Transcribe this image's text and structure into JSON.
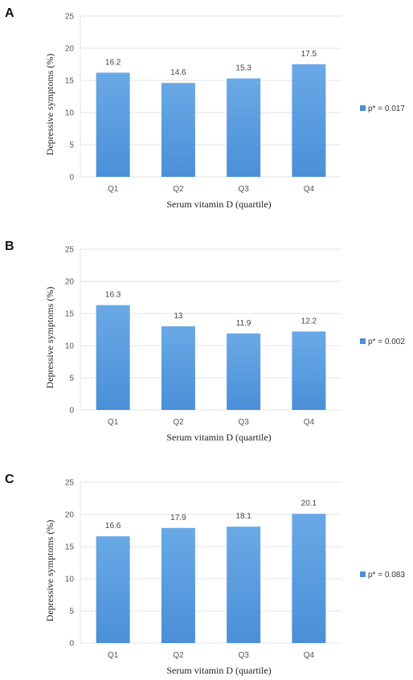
{
  "chart_data": [
    {
      "panel": "A",
      "type": "bar",
      "categories": [
        "Q1",
        "Q2",
        "Q3",
        "Q4"
      ],
      "values": [
        16.2,
        14.6,
        15.3,
        17.5
      ],
      "value_labels": [
        "16.2",
        "14.6",
        "15.3",
        "17.5"
      ],
      "yticks": [
        "0",
        "5",
        "10",
        "15",
        "20",
        "25"
      ],
      "ylim": [
        0,
        25
      ],
      "xlabel": "Serum vitamin D (quartile)",
      "ylabel": "Depressive symptoms (%)",
      "legend": "p* = 0.017",
      "legend_position": "right",
      "grid": true,
      "bar_color": "#4a8fd8"
    },
    {
      "panel": "B",
      "type": "bar",
      "categories": [
        "Q1",
        "Q2",
        "Q3",
        "Q4"
      ],
      "values": [
        16.3,
        13,
        11.9,
        12.2
      ],
      "value_labels": [
        "16.3",
        "13",
        "11.9",
        "12.2"
      ],
      "yticks": [
        "0",
        "5",
        "10",
        "15",
        "20",
        "25"
      ],
      "ylim": [
        0,
        25
      ],
      "xlabel": "Serum vitamin D (quartile)",
      "ylabel": "Depressive symptoms (%)",
      "legend": "p* = 0.002",
      "legend_position": "right",
      "grid": true,
      "bar_color": "#4a8fd8"
    },
    {
      "panel": "C",
      "type": "bar",
      "categories": [
        "Q1",
        "Q2",
        "Q3",
        "Q4"
      ],
      "values": [
        16.6,
        17.9,
        18.1,
        20.1
      ],
      "value_labels": [
        "16.6",
        "17.9",
        "18.1",
        "20.1"
      ],
      "yticks": [
        "0",
        "5",
        "10",
        "15",
        "20",
        "25"
      ],
      "ylim": [
        0,
        25
      ],
      "xlabel": "Serum vitamin D (quartile)",
      "ylabel": "Depressive symptoms (%)",
      "legend": "p* = 0.083",
      "legend_position": "right",
      "grid": true,
      "bar_color": "#4a8fd8"
    }
  ]
}
